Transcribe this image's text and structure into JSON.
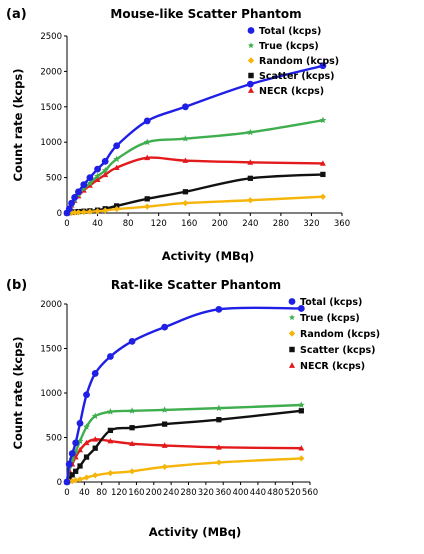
{
  "chart_data": [
    {
      "type": "line",
      "panel_label": "(a)",
      "title": "Mouse-like Scatter Phantom",
      "xlabel": "Activity (MBq)",
      "ylabel": "Count rate (kcps)",
      "xlim": [
        0,
        360
      ],
      "ylim": [
        0,
        2500
      ],
      "xticks": [
        "0",
        "40",
        "80",
        "120",
        "160",
        "200",
        "240",
        "280",
        "320",
        "360"
      ],
      "yticks": [
        "0",
        "500",
        "1000",
        "1500",
        "2000",
        "2500"
      ],
      "legend_position": "top-right",
      "series": [
        {
          "name": "Total (kcps)",
          "color": "#1f1fe6",
          "marker": "circle",
          "x": [
            0,
            3,
            6,
            10,
            15,
            22,
            30,
            40,
            50,
            65,
            105,
            155,
            240,
            335
          ],
          "y": [
            0,
            60,
            140,
            220,
            300,
            400,
            500,
            620,
            730,
            950,
            1300,
            1500,
            1820,
            2080
          ]
        },
        {
          "name": "True (kcps)",
          "color": "#3fae4f",
          "marker": "star",
          "x": [
            0,
            3,
            6,
            10,
            15,
            22,
            30,
            40,
            50,
            65,
            105,
            155,
            240,
            335
          ],
          "y": [
            0,
            55,
            120,
            190,
            260,
            350,
            420,
            520,
            600,
            760,
            1000,
            1050,
            1140,
            1310
          ]
        },
        {
          "name": "Random (kcps)",
          "color": "#f5b50a",
          "marker": "diamond",
          "x": [
            0,
            3,
            6,
            10,
            15,
            22,
            30,
            40,
            50,
            65,
            105,
            155,
            240,
            335
          ],
          "y": [
            0,
            2,
            4,
            6,
            8,
            12,
            18,
            25,
            35,
            55,
            90,
            140,
            180,
            230
          ]
        },
        {
          "name": "Scatter (kcps)",
          "color": "#111111",
          "marker": "square",
          "x": [
            0,
            3,
            6,
            10,
            15,
            22,
            30,
            40,
            50,
            65,
            105,
            155,
            240,
            335
          ],
          "y": [
            0,
            5,
            10,
            15,
            20,
            25,
            30,
            40,
            60,
            100,
            200,
            300,
            490,
            545
          ]
        },
        {
          "name": "NECR (kcps)",
          "color": "#e31a1c",
          "marker": "triangle",
          "x": [
            0,
            3,
            6,
            10,
            15,
            22,
            30,
            40,
            50,
            65,
            105,
            155,
            240,
            335
          ],
          "y": [
            0,
            45,
            110,
            175,
            240,
            320,
            390,
            470,
            540,
            640,
            780,
            740,
            715,
            700
          ]
        }
      ]
    },
    {
      "type": "line",
      "panel_label": "(b)",
      "title": "Rat-like Scatter Phantom",
      "xlabel": "Activity (MBq)",
      "ylabel": "Count rate (kcps)",
      "xlim": [
        0,
        560
      ],
      "ylim": [
        0,
        2000
      ],
      "xticks": [
        "0",
        "40",
        "80",
        "120",
        "160",
        "200",
        "240",
        "280",
        "320",
        "360",
        "400",
        "440",
        "480",
        "520",
        "560"
      ],
      "yticks": [
        "0",
        "500",
        "1000",
        "1500",
        "2000"
      ],
      "legend_position": "top-right",
      "series": [
        {
          "name": "Total (kcps)",
          "color": "#1f1fe6",
          "marker": "circle",
          "x": [
            0,
            5,
            12,
            20,
            30,
            45,
            65,
            100,
            150,
            225,
            350,
            540
          ],
          "y": [
            0,
            200,
            320,
            440,
            660,
            980,
            1220,
            1410,
            1580,
            1740,
            1940,
            1950
          ]
        },
        {
          "name": "True (kcps)",
          "color": "#3fae4f",
          "marker": "star",
          "x": [
            0,
            5,
            12,
            20,
            30,
            45,
            65,
            100,
            150,
            225,
            350,
            540
          ],
          "y": [
            0,
            160,
            250,
            340,
            460,
            620,
            740,
            790,
            800,
            810,
            830,
            865
          ]
        },
        {
          "name": "Random (kcps)",
          "color": "#f5b50a",
          "marker": "diamond",
          "x": [
            0,
            5,
            12,
            20,
            30,
            45,
            65,
            100,
            150,
            225,
            350,
            540
          ],
          "y": [
            0,
            5,
            10,
            20,
            30,
            50,
            75,
            100,
            120,
            170,
            220,
            265
          ]
        },
        {
          "name": "Scatter (kcps)",
          "color": "#111111",
          "marker": "square",
          "x": [
            0,
            5,
            12,
            20,
            30,
            45,
            65,
            100,
            150,
            225,
            350,
            540
          ],
          "y": [
            0,
            40,
            80,
            120,
            180,
            280,
            380,
            580,
            610,
            650,
            700,
            800
          ]
        },
        {
          "name": "NECR (kcps)",
          "color": "#e31a1c",
          "marker": "triangle",
          "x": [
            0,
            5,
            12,
            20,
            30,
            45,
            65,
            100,
            150,
            225,
            350,
            540
          ],
          "y": [
            0,
            130,
            200,
            280,
            360,
            440,
            480,
            460,
            430,
            410,
            390,
            380
          ]
        }
      ]
    }
  ]
}
